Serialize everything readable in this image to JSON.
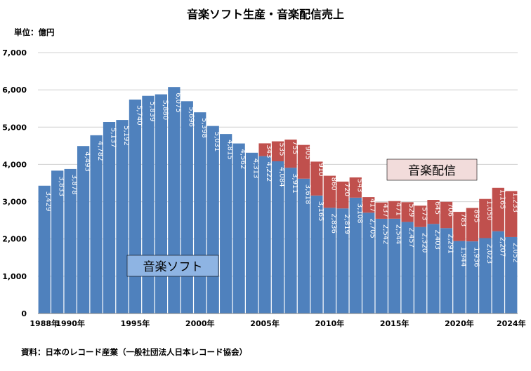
{
  "title": "音楽ソフト生産・音楽配信売上",
  "unit_label": "単位：億円",
  "source": "資料：日本のレコード産業（一般社団法人日本レコード協会）",
  "colors": {
    "soft": "#4f81bd",
    "digital": "#c0504d",
    "soft_box_fill": "#8eb4e3",
    "digital_box_fill": "#f2dcdb",
    "grid": "#d0d0d0"
  },
  "chart_data": {
    "type": "bar",
    "stacked": true,
    "title": "音楽ソフト生産・音楽配信売上",
    "ylabel": "単位：億円",
    "ylim": [
      0,
      7000
    ],
    "yticks": [
      0,
      1000,
      2000,
      3000,
      4000,
      5000,
      6000,
      7000
    ],
    "ytick_labels": [
      "0",
      "1,000",
      "2,000",
      "3,000",
      "4,000",
      "5,000",
      "6,000",
      "7,000"
    ],
    "grid": true,
    "x": [
      1988,
      1989,
      1990,
      1991,
      1992,
      1993,
      1994,
      1995,
      1996,
      1997,
      1998,
      1999,
      2000,
      2001,
      2002,
      2003,
      2004,
      2005,
      2006,
      2007,
      2008,
      2009,
      2010,
      2011,
      2012,
      2013,
      2014,
      2015,
      2016,
      2017,
      2018,
      2019,
      2020,
      2021,
      2022,
      2023,
      2024
    ],
    "x_tick_labels": [
      {
        "year": 1988,
        "label": "1988年"
      },
      {
        "year": 1990,
        "label": "1990年"
      },
      {
        "year": 1995,
        "label": "1995年"
      },
      {
        "year": 2000,
        "label": "2000年"
      },
      {
        "year": 2005,
        "label": "2005年"
      },
      {
        "year": 2010,
        "label": "2010年"
      },
      {
        "year": 2015,
        "label": "2015年"
      },
      {
        "year": 2020,
        "label": "2020年"
      },
      {
        "year": 2024,
        "label": "2024年"
      }
    ],
    "series": [
      {
        "name": "音楽ソフト",
        "values": [
          3429,
          3833,
          3878,
          4493,
          4782,
          5137,
          5192,
          5740,
          5839,
          5880,
          6075,
          5696,
          5398,
          5031,
          4815,
          4562,
          4313,
          4222,
          4084,
          3911,
          3618,
          3165,
          2836,
          2819,
          3108,
          2705,
          2542,
          2544,
          2457,
          2320,
          2403,
          2291,
          1944,
          1936,
          2023,
          2207,
          2052
        ],
        "labels": [
          "3,429",
          "3,833",
          "3,878",
          "4,493",
          "4,782",
          "5,137",
          "5,192",
          "5,740",
          "5,839",
          "5,880",
          "6,075",
          "5,696",
          "5,398",
          "5,031",
          "4,815",
          "4,562",
          "4,313",
          "4,222",
          "4,084",
          "3,911",
          "3,618",
          "3,165",
          "2,836",
          "2,819",
          "3,108",
          "2,705",
          "2,542",
          "2,544",
          "2,457",
          "2,320",
          "2,403",
          "2,291",
          "1,944",
          "1,936",
          "2,023",
          "2,207",
          "2,052"
        ]
      },
      {
        "name": "音楽配信",
        "values": [
          0,
          0,
          0,
          0,
          0,
          0,
          0,
          0,
          0,
          0,
          0,
          0,
          0,
          0,
          0,
          0,
          0,
          343,
          535,
          755,
          905,
          910,
          860,
          720,
          543,
          417,
          437,
          471,
          529,
          573,
          645,
          706,
          783,
          895,
          1050,
          1165,
          1233
        ],
        "labels": [
          "",
          "",
          "",
          "",
          "",
          "",
          "",
          "",
          "",
          "",
          "",
          "",
          "",
          "",
          "",
          "",
          "",
          "343",
          "535",
          "755",
          "905",
          "910",
          "860",
          "720",
          "543",
          "417",
          "437",
          "471",
          "529",
          "573",
          "645",
          "706",
          "783",
          "895",
          "1,050",
          "1,165",
          "1,233"
        ]
      }
    ]
  }
}
